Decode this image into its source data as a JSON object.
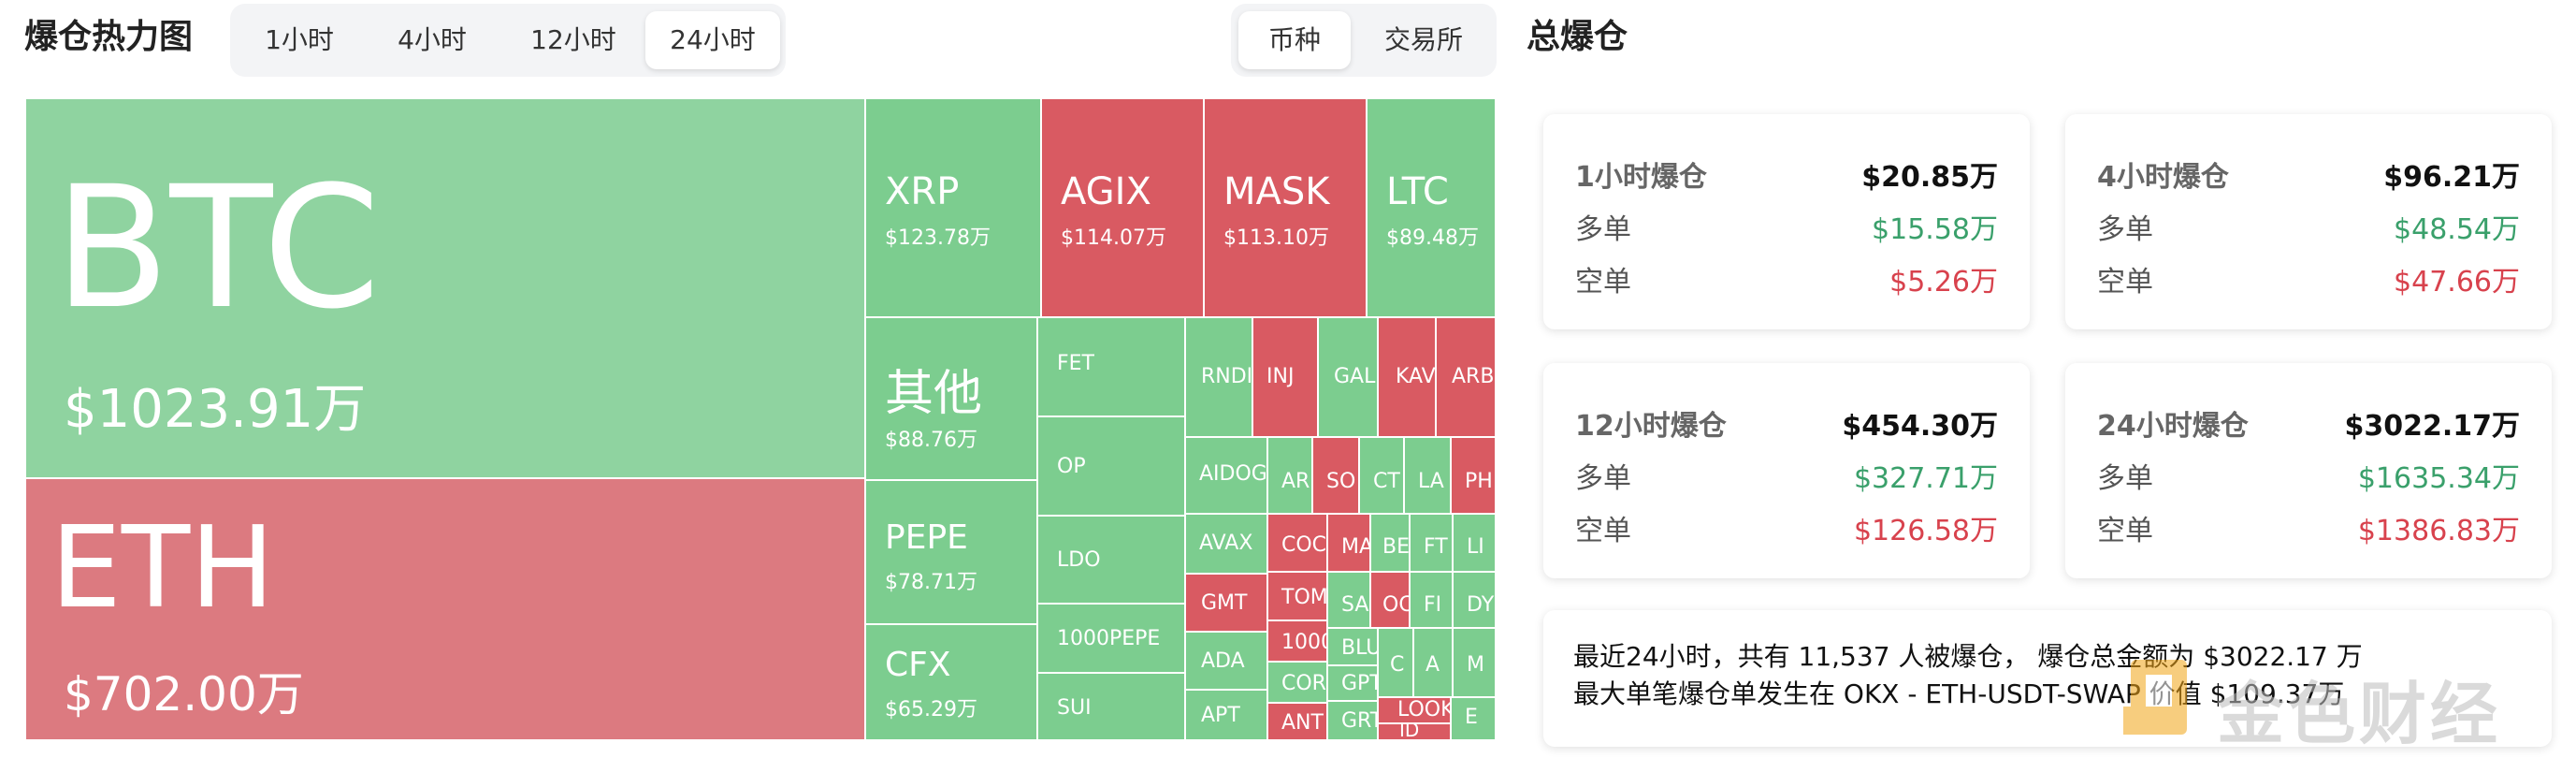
{
  "header": {
    "title": "爆仓热力图",
    "time_tabs": [
      "1小时",
      "4小时",
      "12小时",
      "24小时"
    ],
    "active_time_tab": "24小时",
    "view_tabs": [
      "币种",
      "交易所"
    ],
    "active_view_tab": "币种"
  },
  "heatmap": {
    "btc": {
      "symbol": "BTC",
      "value": "$1023.91万"
    },
    "eth": {
      "symbol": "ETH",
      "value": "$702.00万"
    },
    "xrp": {
      "symbol": "XRP",
      "value": "$123.78万"
    },
    "agix": {
      "symbol": "AGIX",
      "value": "$114.07万"
    },
    "mask": {
      "symbol": "MASK",
      "value": "$113.10万"
    },
    "ltc": {
      "symbol": "LTC",
      "value": "$89.48万"
    },
    "other": {
      "symbol": "其他",
      "value": "$88.76万"
    },
    "pepe": {
      "symbol": "PEPE",
      "value": "$78.71万"
    },
    "cfx": {
      "symbol": "CFX",
      "value": "$65.29万"
    },
    "small": {
      "fet": "FET",
      "op": "OP",
      "ldo": "LDO",
      "pepe1000": "1000PEPE",
      "sui": "SUI",
      "rndr": "RNDI",
      "inj": "INJ",
      "gal": "GAL",
      "kav": "KAV",
      "arb": "ARB",
      "aidoge": "AIDOG",
      "ar": "AR",
      "sol": "SO",
      "ctk": "CT",
      "la": "LA",
      "ph": "PH",
      "avax": "AVAX",
      "coco": "COCO",
      "ma": "MA",
      "be": "BE",
      "ft": "FT",
      "li": "LI",
      "gmt": "GMT",
      "tom": "TOM",
      "sa": "SA",
      "oc": "OC",
      "fi": "FI",
      "dy": "DY",
      "ada": "ADA",
      "k1000": "1000",
      "blu": "BLU",
      "c": "C",
      "a": "A",
      "m": "M",
      "apt": "APT",
      "cor": "COR",
      "gpt": "GPT",
      "ant": "ANT",
      "grt": "GRT",
      "look": "LOOK",
      "id": "ID",
      "e": "E"
    }
  },
  "summary": {
    "title": "总爆仓",
    "cards": [
      {
        "label": "1小时爆仓",
        "total": "$20.85万",
        "long_label": "多单",
        "long": "$15.58万",
        "short_label": "空单",
        "short": "$5.26万"
      },
      {
        "label": "4小时爆仓",
        "total": "$96.21万",
        "long_label": "多单",
        "long": "$48.54万",
        "short_label": "空单",
        "short": "$47.66万"
      },
      {
        "label": "12小时爆仓",
        "total": "$454.30万",
        "long_label": "多单",
        "long": "$327.71万",
        "short_label": "空单",
        "short": "$126.58万"
      },
      {
        "label": "24小时爆仓",
        "total": "$3022.17万",
        "long_label": "多单",
        "long": "$1635.34万",
        "short_label": "空单",
        "short": "$1386.83万"
      }
    ],
    "note_line1": "最近24小时，共有 11,537 人被爆仓， 爆仓总金额为 $3022.17 万",
    "note_line2": "最大单笔爆仓单发生在 OKX - ETH-USDT-SWAP 价值 $109.37万"
  },
  "watermark": "金色财经",
  "colors": {
    "long": "#3aa06b",
    "short": "#d8424d",
    "tile_green": "#7ccd8f",
    "tile_red": "#d95a62"
  }
}
